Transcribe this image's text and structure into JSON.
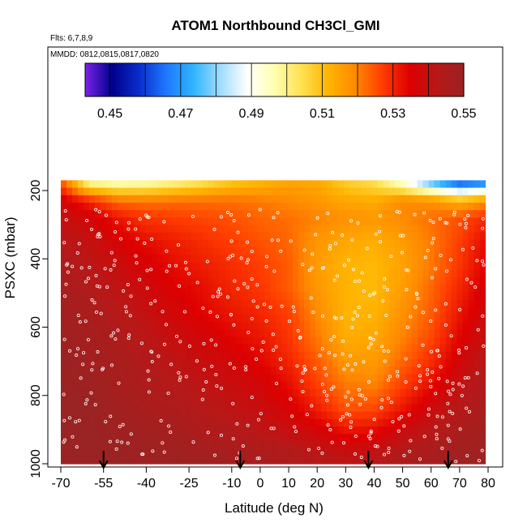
{
  "chart_data": {
    "type": "heatmap",
    "title": "ATOM1 Northbound CH3Cl_GMI",
    "flights_label": "Flts: 6,7,8,9",
    "dates_label": "MMDD: 0812,0815,0817,0820",
    "xlabel": "Latitude (deg N)",
    "ylabel": "PSXC (mbar)",
    "xlim": [
      -70,
      80
    ],
    "ylim": [
      1000,
      100
    ],
    "x_ticks": [
      -70,
      -55,
      -40,
      -25,
      -10,
      0,
      10,
      20,
      30,
      40,
      50,
      60,
      70,
      80
    ],
    "y_ticks": [
      200,
      400,
      600,
      800,
      1000
    ],
    "colorbar": {
      "ticks": [
        0.45,
        0.47,
        0.49,
        0.51,
        0.53,
        0.55
      ],
      "range": [
        0.443,
        0.55
      ],
      "colors": [
        "#7b22e8",
        "#00008b",
        "#0a2ecc",
        "#1e78ff",
        "#30b4ff",
        "#a0dcff",
        "#ffffff",
        "#ffffb0",
        "#ffe050",
        "#ffb400",
        "#ff8800",
        "#ff3c00",
        "#dd0000",
        "#b81818",
        "#9a2323"
      ]
    },
    "latitude_bins": [
      -70,
      -60,
      -50,
      -40,
      -30,
      -20,
      -10,
      0,
      10,
      20,
      30,
      40,
      50,
      60,
      70,
      80
    ],
    "pressure_levels": [
      180,
      230,
      280,
      350,
      420,
      490,
      560,
      630,
      700,
      770,
      840,
      910,
      980
    ],
    "grid_values": [
      [
        0.526,
        0.5,
        0.497,
        0.498,
        0.501,
        0.505,
        0.51,
        0.512,
        0.515,
        0.514,
        0.508,
        0.505,
        0.495,
        0.478,
        0.465,
        0.47
      ],
      [
        0.537,
        0.53,
        0.522,
        0.521,
        0.522,
        0.522,
        0.522,
        0.521,
        0.519,
        0.517,
        0.514,
        0.513,
        0.519,
        0.518,
        0.512,
        0.518
      ],
      [
        0.54,
        0.537,
        0.532,
        0.528,
        0.527,
        0.526,
        0.525,
        0.523,
        0.522,
        0.52,
        0.518,
        0.517,
        0.519,
        0.522,
        0.525,
        0.53
      ],
      [
        0.542,
        0.54,
        0.536,
        0.533,
        0.531,
        0.529,
        0.527,
        0.525,
        0.523,
        0.517,
        0.514,
        0.513,
        0.516,
        0.521,
        0.527,
        0.534
      ],
      [
        0.545,
        0.542,
        0.539,
        0.536,
        0.533,
        0.531,
        0.529,
        0.527,
        0.524,
        0.516,
        0.512,
        0.511,
        0.515,
        0.521,
        0.528,
        0.535
      ],
      [
        0.547,
        0.544,
        0.541,
        0.538,
        0.535,
        0.533,
        0.53,
        0.528,
        0.524,
        0.517,
        0.512,
        0.511,
        0.516,
        0.523,
        0.53,
        0.537
      ],
      [
        0.548,
        0.546,
        0.543,
        0.54,
        0.537,
        0.534,
        0.532,
        0.53,
        0.527,
        0.519,
        0.512,
        0.512,
        0.518,
        0.524,
        0.532,
        0.539
      ],
      [
        0.549,
        0.547,
        0.545,
        0.542,
        0.539,
        0.537,
        0.534,
        0.532,
        0.528,
        0.521,
        0.513,
        0.514,
        0.52,
        0.526,
        0.534,
        0.541
      ],
      [
        0.55,
        0.548,
        0.546,
        0.544,
        0.541,
        0.539,
        0.537,
        0.534,
        0.53,
        0.524,
        0.517,
        0.516,
        0.523,
        0.529,
        0.537,
        0.543
      ],
      [
        0.55,
        0.549,
        0.547,
        0.545,
        0.543,
        0.541,
        0.539,
        0.537,
        0.533,
        0.527,
        0.521,
        0.52,
        0.527,
        0.533,
        0.54,
        0.545
      ],
      [
        0.55,
        0.55,
        0.548,
        0.546,
        0.545,
        0.543,
        0.541,
        0.539,
        0.536,
        0.531,
        0.525,
        0.526,
        0.532,
        0.538,
        0.543,
        0.547
      ],
      [
        0.55,
        0.55,
        0.549,
        0.548,
        0.547,
        0.545,
        0.544,
        0.542,
        0.54,
        0.537,
        0.533,
        0.534,
        0.539,
        0.543,
        0.546,
        0.548
      ],
      [
        0.55,
        0.55,
        0.55,
        0.549,
        0.549,
        0.548,
        0.547,
        0.546,
        0.545,
        0.543,
        0.541,
        0.542,
        0.545,
        0.547,
        0.548,
        0.549
      ]
    ],
    "flight_markers_latitude": [
      -55,
      -7,
      38,
      66
    ]
  }
}
